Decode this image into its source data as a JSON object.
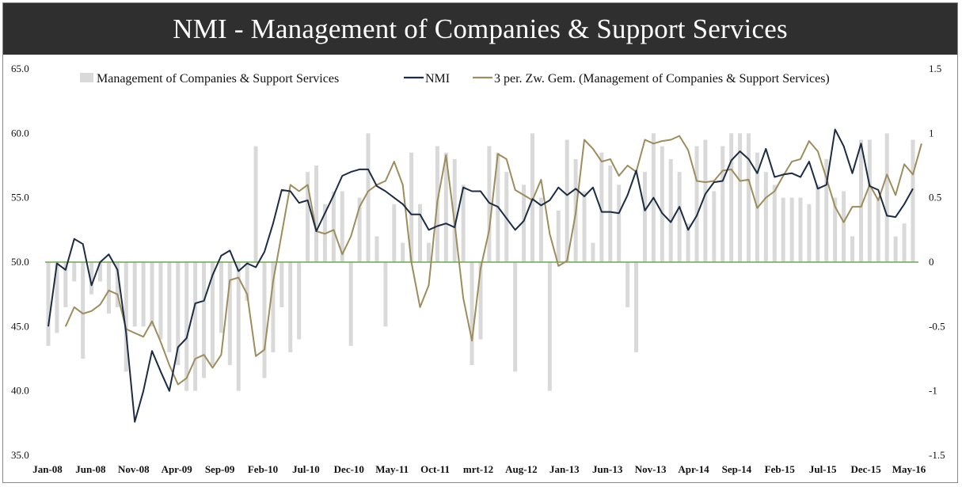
{
  "title": "NMI - Management of Companies & Support Services",
  "colors": {
    "title_bg": "#2f2f2f",
    "title_fg": "#ffffff",
    "bars": "#d9d9d9",
    "nmi": "#1c2c44",
    "avg": "#9d8c5c",
    "zero_line": "#6aa84f"
  },
  "chart_data": {
    "type": "bar+line",
    "title": "NMI - Management of Companies & Support Services",
    "legend": {
      "position": "top",
      "items": [
        {
          "label": "Management of Companies & Support Services",
          "kind": "bar"
        },
        {
          "label": "NMI",
          "kind": "line"
        },
        {
          "label": "3 per. Zw. Gem. (Management of Companies & Support Services)",
          "kind": "line"
        }
      ]
    },
    "left_axis": {
      "min": 35,
      "max": 65,
      "ticks": [
        "35.0",
        "40.0",
        "45.0",
        "50.0",
        "55.0",
        "60.0",
        "65.0"
      ]
    },
    "right_axis": {
      "min": -1.5,
      "max": 1.5,
      "ticks": [
        "-1.5",
        "-1",
        "-0.5",
        "0",
        "0.5",
        "1",
        "1.5"
      ]
    },
    "x_tick_labels": [
      "Jan-08",
      "Jun-08",
      "Nov-08",
      "Apr-09",
      "Sep-09",
      "Feb-10",
      "Jul-10",
      "Dec-10",
      "May-11",
      "Oct-11",
      "mrt-12",
      "Aug-12",
      "Jan-13",
      "Jun-13",
      "Nov-13",
      "Apr-14",
      "Sep-14",
      "Feb-15",
      "Jul-15",
      "Dec-15",
      "May-16"
    ],
    "n_periods": 101,
    "bars_right_axis": [
      -0.65,
      -0.55,
      -0.35,
      -0.15,
      -0.75,
      -0.25,
      -0.15,
      -0.4,
      -0.35,
      -0.85,
      -0.5,
      -0.5,
      -0.5,
      -0.6,
      -0.7,
      -0.8,
      -1,
      -1,
      -0.9,
      -0.8,
      -0.55,
      -0.8,
      -1,
      -0.3,
      0.9,
      -0.9,
      -0.7,
      -0.35,
      -0.7,
      -0.6,
      0.7,
      0.75,
      0.45,
      0.55,
      0.55,
      -0.65,
      0.5,
      1,
      0.2,
      -0.5,
      0.45,
      0.15,
      0.85,
      0.45,
      0.15,
      0.9,
      0.85,
      0.8,
      0.6,
      -0.8,
      -0.6,
      0.9,
      0.85,
      0.7,
      -0.85,
      0.6,
      1,
      0.5,
      -1,
      0.4,
      0.95,
      0.8,
      0.55,
      0.15,
      0.85,
      0.75,
      0.6,
      -0.35,
      -0.7,
      0.7,
      1,
      0.9,
      0.8,
      0.7,
      0.3,
      0.9,
      0.95,
      0.55,
      0.9,
      1,
      1,
      1,
      0.85,
      0.7,
      0.6,
      0.5,
      0.5,
      0.5,
      0.45,
      0.6,
      0.8,
      0.5,
      0.55,
      0.2,
      0.95,
      0.95,
      0.5,
      1,
      0.2,
      0.3,
      0.95
    ],
    "nmi": [
      45,
      49.9,
      49.4,
      51.8,
      51.4,
      48.2,
      50,
      50.6,
      49.4,
      44.5,
      37.6,
      40,
      43.1,
      41.5,
      40,
      43.4,
      44.1,
      46.8,
      47,
      49,
      50.5,
      50.9,
      49.3,
      49.9,
      49.6,
      50.8,
      53,
      55.6,
      55.5,
      54.6,
      54.8,
      52.4,
      53.8,
      55.2,
      56.7,
      57,
      57.2,
      57.2,
      55.9,
      55.5,
      55,
      54.5,
      53.7,
      53.7,
      52.5,
      52.8,
      53,
      52.7,
      55.8,
      55.5,
      55.5,
      54.6,
      54.3,
      53.4,
      52.5,
      53.2,
      54.9,
      54.4,
      54.8,
      55.8,
      55.2,
      55.7,
      55.1,
      55.8,
      53.9,
      53.9,
      53.8,
      55.2,
      57.1,
      54,
      55,
      53.8,
      53.1,
      54.3,
      52.5,
      53.6,
      55.3,
      56.2,
      56.3,
      57.9,
      58.6,
      58,
      56.9,
      58.8,
      56.6,
      56.8,
      56.9,
      56.6,
      57.8,
      55.7,
      56,
      60.3,
      59,
      56.9,
      59.2,
      55.9,
      55.6,
      53.6,
      53.5,
      54.5,
      55.7
    ],
    "avg_right_axis": [
      null,
      null,
      -0.5,
      -0.35,
      -0.4,
      -0.38,
      -0.33,
      -0.22,
      -0.25,
      -0.52,
      -0.55,
      -0.58,
      -0.46,
      -0.62,
      -0.8,
      -0.95,
      -0.9,
      -0.75,
      -0.72,
      -0.82,
      -0.72,
      -0.14,
      -0.12,
      -0.25,
      -0.73,
      -0.68,
      -0.15,
      0.22,
      0.6,
      0.55,
      0.6,
      0.24,
      0.22,
      0.25,
      0.06,
      0.2,
      0.43,
      0.55,
      0.6,
      0.63,
      0.78,
      0.6,
      0,
      -0.35,
      -0.18,
      0.47,
      0.83,
      0.3,
      -0.28,
      -0.61,
      -0.05,
      0.25,
      0.84,
      0.8,
      0.56,
      0.52,
      0.48,
      0.64,
      0.22,
      -0.03,
      0.01,
      0.38,
      0.95,
      0.88,
      0.78,
      0.8,
      0.67,
      0.75,
      0.7,
      0.95,
      0.92,
      0.94,
      0.95,
      0.98,
      0.87,
      0.63,
      0.62,
      0.63,
      0.71,
      0.72,
      0.63,
      0.64,
      0.42,
      0.5,
      0.55,
      0.67,
      0.78,
      0.8,
      0.94,
      0.86,
      0.65,
      0.43,
      0.31,
      0.43,
      0.43,
      0.6,
      0.48,
      0.68,
      0.52,
      0.76,
      0.68,
      0.92
    ]
  }
}
